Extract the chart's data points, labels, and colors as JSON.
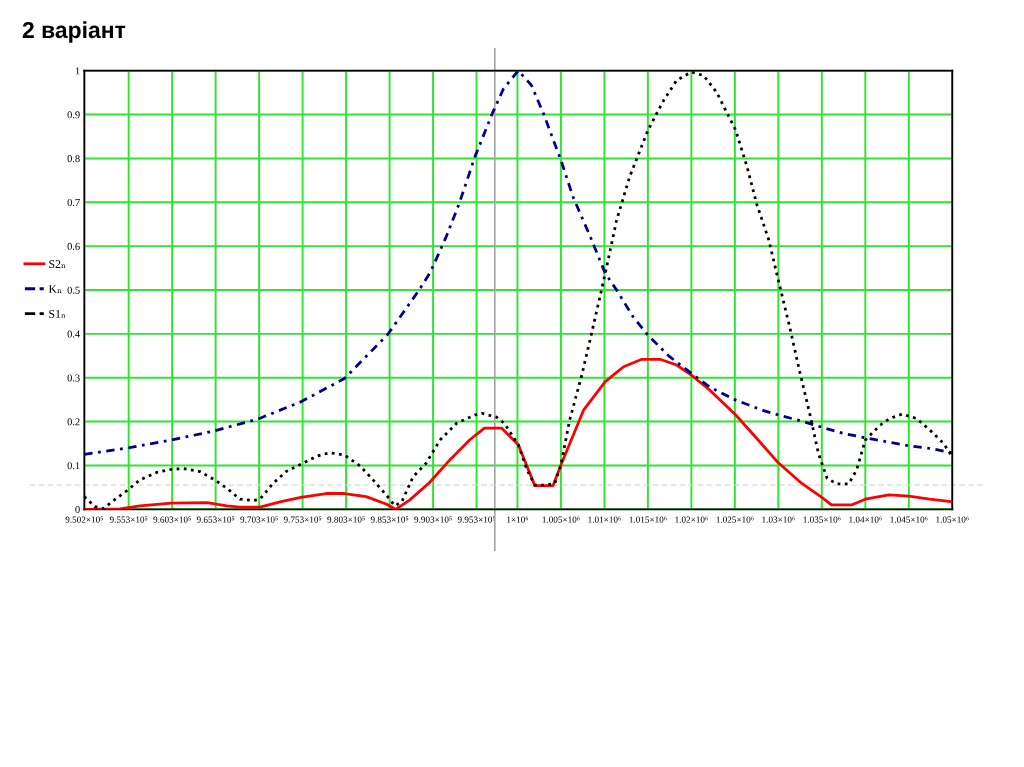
{
  "chart_data": {
    "type": "line",
    "title": "2 варіант",
    "xlim": [
      950200,
      1050000
    ],
    "xticks": [
      {
        "value": 950200,
        "label": "9.502×10⁵"
      },
      {
        "value": 955300,
        "label": "9.553×10⁵"
      },
      {
        "value": 960300,
        "label": "9.603×10⁵"
      },
      {
        "value": 965300,
        "label": "9.653×10⁵"
      },
      {
        "value": 970300,
        "label": "9.703×10⁵"
      },
      {
        "value": 975300,
        "label": "9.753×10⁵"
      },
      {
        "value": 980300,
        "label": "9.803×10⁵"
      },
      {
        "value": 985300,
        "label": "9.853×10⁵"
      },
      {
        "value": 990300,
        "label": "9.903×10⁵"
      },
      {
        "value": 995300,
        "label": "9.953×10⁵"
      },
      {
        "value": 1000000,
        "label": "1×10⁶"
      },
      {
        "value": 1005000,
        "label": "1.005×10⁶"
      },
      {
        "value": 1010000,
        "label": "1.01×10⁶"
      },
      {
        "value": 1015000,
        "label": "1.015×10⁶"
      },
      {
        "value": 1020000,
        "label": "1.02×10⁶"
      },
      {
        "value": 1025000,
        "label": "1.025×10⁶"
      },
      {
        "value": 1030000,
        "label": "1.03×10⁶"
      },
      {
        "value": 1035000,
        "label": "1.035×10⁶"
      },
      {
        "value": 1040000,
        "label": "1.04×10⁶"
      },
      {
        "value": 1045000,
        "label": "1.045×10⁶"
      },
      {
        "value": 1050000,
        "label": "1.05×10⁶"
      }
    ],
    "ylim": [
      0,
      1
    ],
    "yticks": [
      0,
      0.1,
      0.2,
      0.3,
      0.4,
      0.5,
      0.6,
      0.7,
      0.8,
      0.9,
      1
    ],
    "grid": true,
    "legend": "left",
    "series": [
      {
        "name": "S2ₙ",
        "color": "#ff0000",
        "line_style": "solid",
        "x": [
          950200,
          954300,
          956600,
          960200,
          964300,
          966600,
          968100,
          970400,
          972700,
          975100,
          978000,
          980100,
          982600,
          984900,
          986000,
          987600,
          989900,
          992200,
          994500,
          996200,
          998200,
          1000100,
          1002000,
          1004100,
          1005000,
          1007600,
          1010100,
          1012200,
          1014300,
          1016400,
          1018300,
          1020000,
          1022100,
          1025100,
          1027500,
          1030000,
          1032700,
          1035000,
          1036100,
          1038400,
          1040000,
          1042700,
          1045000,
          1047400,
          1050000
        ],
        "values": [
          0.0,
          0.001,
          0.008,
          0.014,
          0.015,
          0.008,
          0.005,
          0.005,
          0.017,
          0.027,
          0.036,
          0.036,
          0.029,
          0.012,
          0.0,
          0.021,
          0.061,
          0.112,
          0.158,
          0.185,
          0.185,
          0.147,
          0.054,
          0.054,
          0.101,
          0.226,
          0.291,
          0.325,
          0.342,
          0.342,
          0.329,
          0.306,
          0.272,
          0.215,
          0.162,
          0.106,
          0.059,
          0.027,
          0.01,
          0.01,
          0.023,
          0.033,
          0.03,
          0.023,
          0.017
        ]
      },
      {
        "name": "Kₙ",
        "color": "#00008b",
        "line_style": "dashdot",
        "x": [
          950200,
          955200,
          960200,
          965200,
          970200,
          975100,
          980100,
          985100,
          988700,
          990000,
          991800,
          993300,
          995100,
          997100,
          998400,
          1000100,
          1001600,
          1003000,
          1005000,
          1006400,
          1008300,
          1010100,
          1011400,
          1013300,
          1015000,
          1017500,
          1020000,
          1022100,
          1025100,
          1028300,
          1030000,
          1032900,
          1035000,
          1037500,
          1040000,
          1042500,
          1045000,
          1047400,
          1050000
        ],
        "values": [
          0.125,
          0.14,
          0.158,
          0.179,
          0.206,
          0.245,
          0.298,
          0.399,
          0.5,
          0.541,
          0.621,
          0.697,
          0.803,
          0.902,
          0.959,
          1.0,
          0.967,
          0.902,
          0.796,
          0.712,
          0.625,
          0.538,
          0.5,
          0.439,
          0.397,
          0.348,
          0.31,
          0.279,
          0.249,
          0.225,
          0.215,
          0.2,
          0.187,
          0.173,
          0.163,
          0.154,
          0.145,
          0.139,
          0.129
        ]
      },
      {
        "name": "S1ₙ",
        "color": "#000000",
        "line_style": "dotted",
        "x": [
          950200,
          951400,
          952400,
          953900,
          955200,
          956600,
          958500,
          960200,
          961600,
          963500,
          965200,
          966600,
          968100,
          969600,
          970400,
          971900,
          973400,
          975100,
          976900,
          978400,
          980100,
          981900,
          983400,
          984900,
          985900,
          986700,
          988000,
          989500,
          991100,
          993000,
          995100,
          995900,
          997600,
          998500,
          1000100,
          1001100,
          1002000,
          1003200,
          1004300,
          1005000,
          1006000,
          1007400,
          1008700,
          1010100,
          1011400,
          1012900,
          1015000,
          1016800,
          1018300,
          1020000,
          1021400,
          1022900,
          1025100,
          1026400,
          1027500,
          1028900,
          1030000,
          1031300,
          1032500,
          1033600,
          1034600,
          1035600,
          1036700,
          1038100,
          1039000,
          1040000,
          1041700,
          1042800,
          1044200,
          1045900,
          1047400,
          1049000,
          1050000
        ],
        "values": [
          0.029,
          0.006,
          0.002,
          0.025,
          0.044,
          0.067,
          0.084,
          0.091,
          0.093,
          0.086,
          0.067,
          0.048,
          0.023,
          0.02,
          0.023,
          0.059,
          0.086,
          0.103,
          0.121,
          0.129,
          0.124,
          0.099,
          0.067,
          0.033,
          0.008,
          0.017,
          0.074,
          0.105,
          0.158,
          0.196,
          0.215,
          0.219,
          0.21,
          0.196,
          0.147,
          0.09,
          0.055,
          0.055,
          0.059,
          0.101,
          0.203,
          0.306,
          0.416,
          0.538,
          0.659,
          0.758,
          0.864,
          0.932,
          0.978,
          0.997,
          0.989,
          0.951,
          0.864,
          0.781,
          0.697,
          0.614,
          0.522,
          0.416,
          0.31,
          0.219,
          0.128,
          0.071,
          0.058,
          0.058,
          0.09,
          0.158,
          0.192,
          0.207,
          0.217,
          0.207,
          0.181,
          0.15,
          0.12
        ]
      }
    ],
    "ref_lines": [
      {
        "axis": "x",
        "value": 997400,
        "color": "#a6a6a6",
        "line_style": "solid"
      },
      {
        "axis": "y",
        "value": 0.055,
        "color": "#d9d9d9",
        "line_style": "dashed"
      }
    ]
  }
}
